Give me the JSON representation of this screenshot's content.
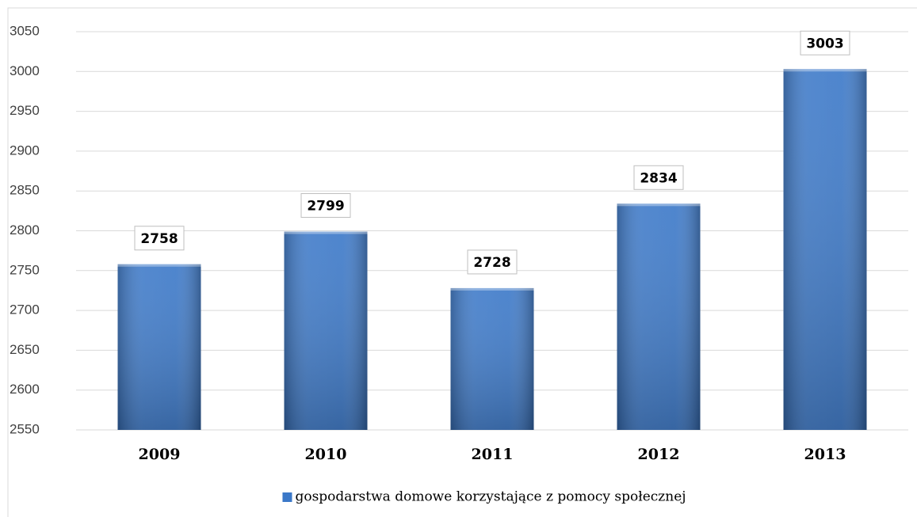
{
  "chart_data": {
    "type": "bar",
    "categories": [
      "2009",
      "2010",
      "2011",
      "2012",
      "2013"
    ],
    "series": [
      {
        "name": "gospodarstwa domowe korzystające z pomocy społecznej",
        "color": "#3b78c8",
        "values": [
          2758,
          2799,
          2728,
          2834,
          3003
        ]
      }
    ],
    "ylim": [
      2550,
      3050
    ],
    "yticks": [
      2550,
      2600,
      2650,
      2700,
      2750,
      2800,
      2850,
      2900,
      2950,
      3000,
      3050
    ],
    "grid": true,
    "legend": "bottom"
  }
}
